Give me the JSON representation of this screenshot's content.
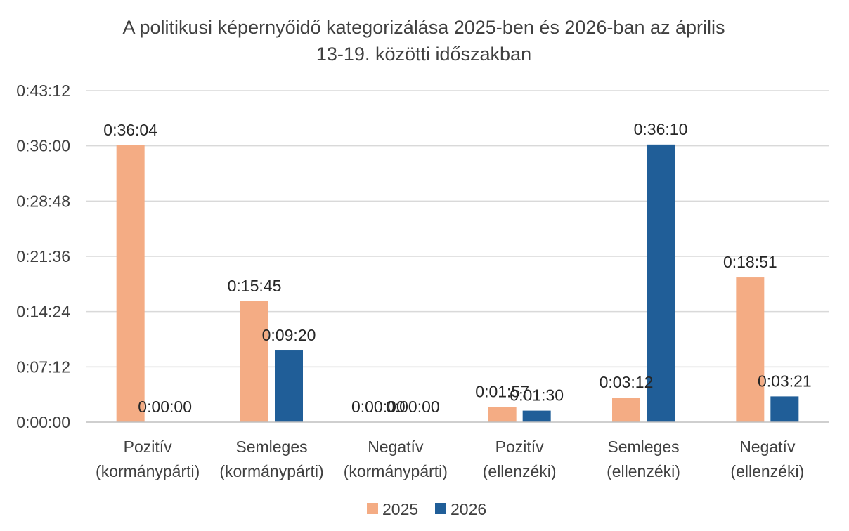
{
  "chart_data": {
    "type": "bar",
    "title_lines": [
      "A politikusi képernyőidő kategorizálása 2025-ben és 2026-ban az április",
      "13-19. közötti időszakban"
    ],
    "categories": [
      [
        "Pozitív",
        "(kormánypárti)"
      ],
      [
        "Semleges",
        "(kormánypárti)"
      ],
      [
        "Negatív",
        "(kormánypárti)"
      ],
      [
        "Pozitív",
        "(ellenzéki)"
      ],
      [
        "Semleges",
        "(ellenzéki)"
      ],
      [
        "Negatív",
        "(ellenzéki)"
      ]
    ],
    "y_ticks": [
      "0:00:00",
      "0:07:12",
      "0:14:24",
      "0:21:36",
      "0:28:48",
      "0:36:00",
      "0:43:12"
    ],
    "ylim": [
      "0:00:00",
      "0:43:12"
    ],
    "series": [
      {
        "name": "2025",
        "color": "#f4ac84",
        "values": [
          "0:36:04",
          "0:15:45",
          "0:00:00",
          "0:01:57",
          "0:03:12",
          "0:18:51"
        ]
      },
      {
        "name": "2026",
        "color": "#205e98",
        "values": [
          "0:00:00",
          "0:09:20",
          "0:00:00",
          "0:01:30",
          "0:36:10",
          "0:03:21"
        ]
      }
    ],
    "grid": true,
    "legend_position": "bottom"
  }
}
